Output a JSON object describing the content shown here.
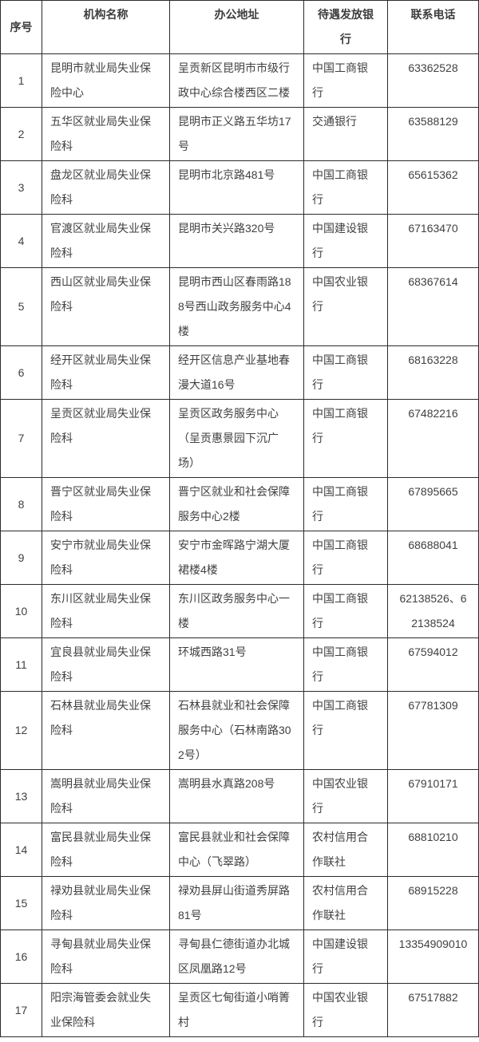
{
  "table": {
    "columns": [
      {
        "key": "index",
        "label": "序号"
      },
      {
        "key": "name",
        "label": "机构名称"
      },
      {
        "key": "address",
        "label": "办公地址"
      },
      {
        "key": "bank",
        "label": "待遇发放银\n行"
      },
      {
        "key": "phone",
        "label": "联系电话"
      }
    ],
    "rows": [
      {
        "index": "1",
        "name": "昆明市就业局失业保\n险中心",
        "address": "呈贡新区昆明市市级行\n政中心综合楼西区二楼",
        "bank": "中国工商银\n行",
        "phone": "63362528"
      },
      {
        "index": "2",
        "name": "五华区就业局失业保\n险科",
        "address": "昆明市正义路五华坊17\n号",
        "bank": "交通银行",
        "phone": "63588129"
      },
      {
        "index": "3",
        "name": "盘龙区就业局失业保\n险科",
        "address": "昆明市北京路481号",
        "bank": "中国工商银\n行",
        "phone": "65615362"
      },
      {
        "index": "4",
        "name": "官渡区就业局失业保\n险科",
        "address": "昆明市关兴路320号",
        "bank": "中国建设银\n行",
        "phone": "67163470"
      },
      {
        "index": "5",
        "name": "西山区就业局失业保\n险科",
        "address": "昆明市西山区春雨路18\n8号西山政务服务中心4\n楼",
        "bank": "中国农业银\n行",
        "phone": "68367614"
      },
      {
        "index": "6",
        "name": "经开区就业局失业保\n险科",
        "address": "经开区信息产业基地春\n漫大道16号",
        "bank": "中国工商银\n行",
        "phone": "68163228"
      },
      {
        "index": "7",
        "name": "呈贡区就业局失业保\n险科",
        "address": "呈贡区政务服务中心\n（呈贡惠景园下沉广\n场）",
        "bank": "中国工商银\n行",
        "phone": "67482216"
      },
      {
        "index": "8",
        "name": "晋宁区就业局失业保\n险科",
        "address": "晋宁区就业和社会保障\n服务中心2楼",
        "bank": "中国工商银\n行",
        "phone": "67895665"
      },
      {
        "index": "9",
        "name": "安宁市就业局失业保\n险科",
        "address": "安宁市金晖路宁湖大厦\n裙楼4楼",
        "bank": "中国工商银\n行",
        "phone": "68688041"
      },
      {
        "index": "10",
        "name": "东川区就业局失业保\n险科",
        "address": "东川区政务服务中心一\n楼",
        "bank": "中国工商银\n行",
        "phone": "62138526、6\n2138524"
      },
      {
        "index": "11",
        "name": "宜良县就业局失业保\n险科",
        "address": "环城西路31号",
        "bank": "中国工商银\n行",
        "phone": "67594012"
      },
      {
        "index": "12",
        "name": "石林县就业局失业保\n险科",
        "address": "石林县就业和社会保障\n服务中心（石林南路30\n2号）",
        "bank": "中国工商银\n行",
        "phone": "67781309"
      },
      {
        "index": "13",
        "name": "嵩明县就业局失业保\n险科",
        "address": "嵩明县水真路208号",
        "bank": "中国农业银\n行",
        "phone": "67910171"
      },
      {
        "index": "14",
        "name": "富民县就业局失业保\n险科",
        "address": "富民县就业和社会保障\n中心（飞翠路）",
        "bank": "农村信用合\n作联社",
        "phone": "68810210"
      },
      {
        "index": "15",
        "name": "禄劝县就业局失业保\n险科",
        "address": "禄劝县屏山街道秀屏路\n81号",
        "bank": "农村信用合\n作联社",
        "phone": "68915228"
      },
      {
        "index": "16",
        "name": "寻甸县就业局失业保\n险科",
        "address": "寻甸县仁德街道办北城\n区凤凰路12号",
        "bank": "中国建设银\n行",
        "phone": "13354909010"
      },
      {
        "index": "17",
        "name": "阳宗海管委会就业失\n业保险科",
        "address": "呈贡区七甸街道小哨箐\n村",
        "bank": "中国农业银\n行",
        "phone": "67517882"
      }
    ],
    "colors": {
      "text": "#404040",
      "border": "#2b2b2b",
      "background": "#ffffff"
    }
  }
}
